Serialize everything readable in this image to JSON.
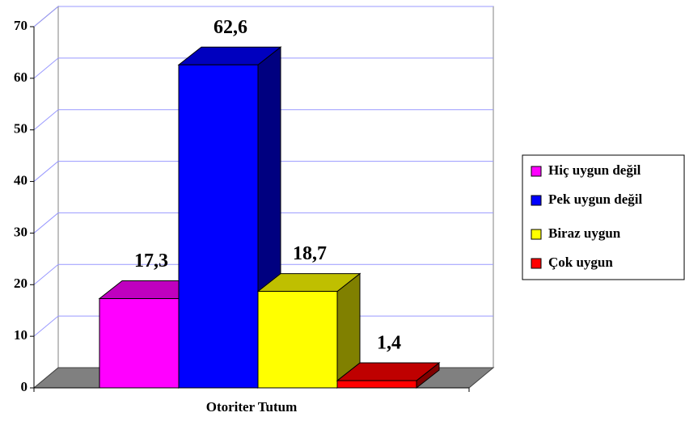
{
  "chart_data": {
    "type": "bar3d",
    "categories": [
      "Otoriter Tutum"
    ],
    "series": [
      {
        "name": "Hiç uygun değil",
        "color": "#ff00ff",
        "values": [
          17.3
        ],
        "value_labels": [
          "17,3"
        ]
      },
      {
        "name": "Pek uygun değil",
        "color": "#0000ff",
        "values": [
          62.6
        ],
        "value_labels": [
          "62,6"
        ]
      },
      {
        "name": "Biraz uygun",
        "color": "#ffff00",
        "values": [
          18.7
        ],
        "value_labels": [
          "18,7"
        ]
      },
      {
        "name": "Çok uygun",
        "color": "#ff0000",
        "values": [
          1.4
        ],
        "value_labels": [
          "1,4"
        ]
      }
    ],
    "ylim": [
      0,
      70
    ],
    "yticks": [
      0,
      10,
      20,
      30,
      40,
      50,
      60,
      70
    ],
    "grid": true,
    "legend": "right"
  }
}
